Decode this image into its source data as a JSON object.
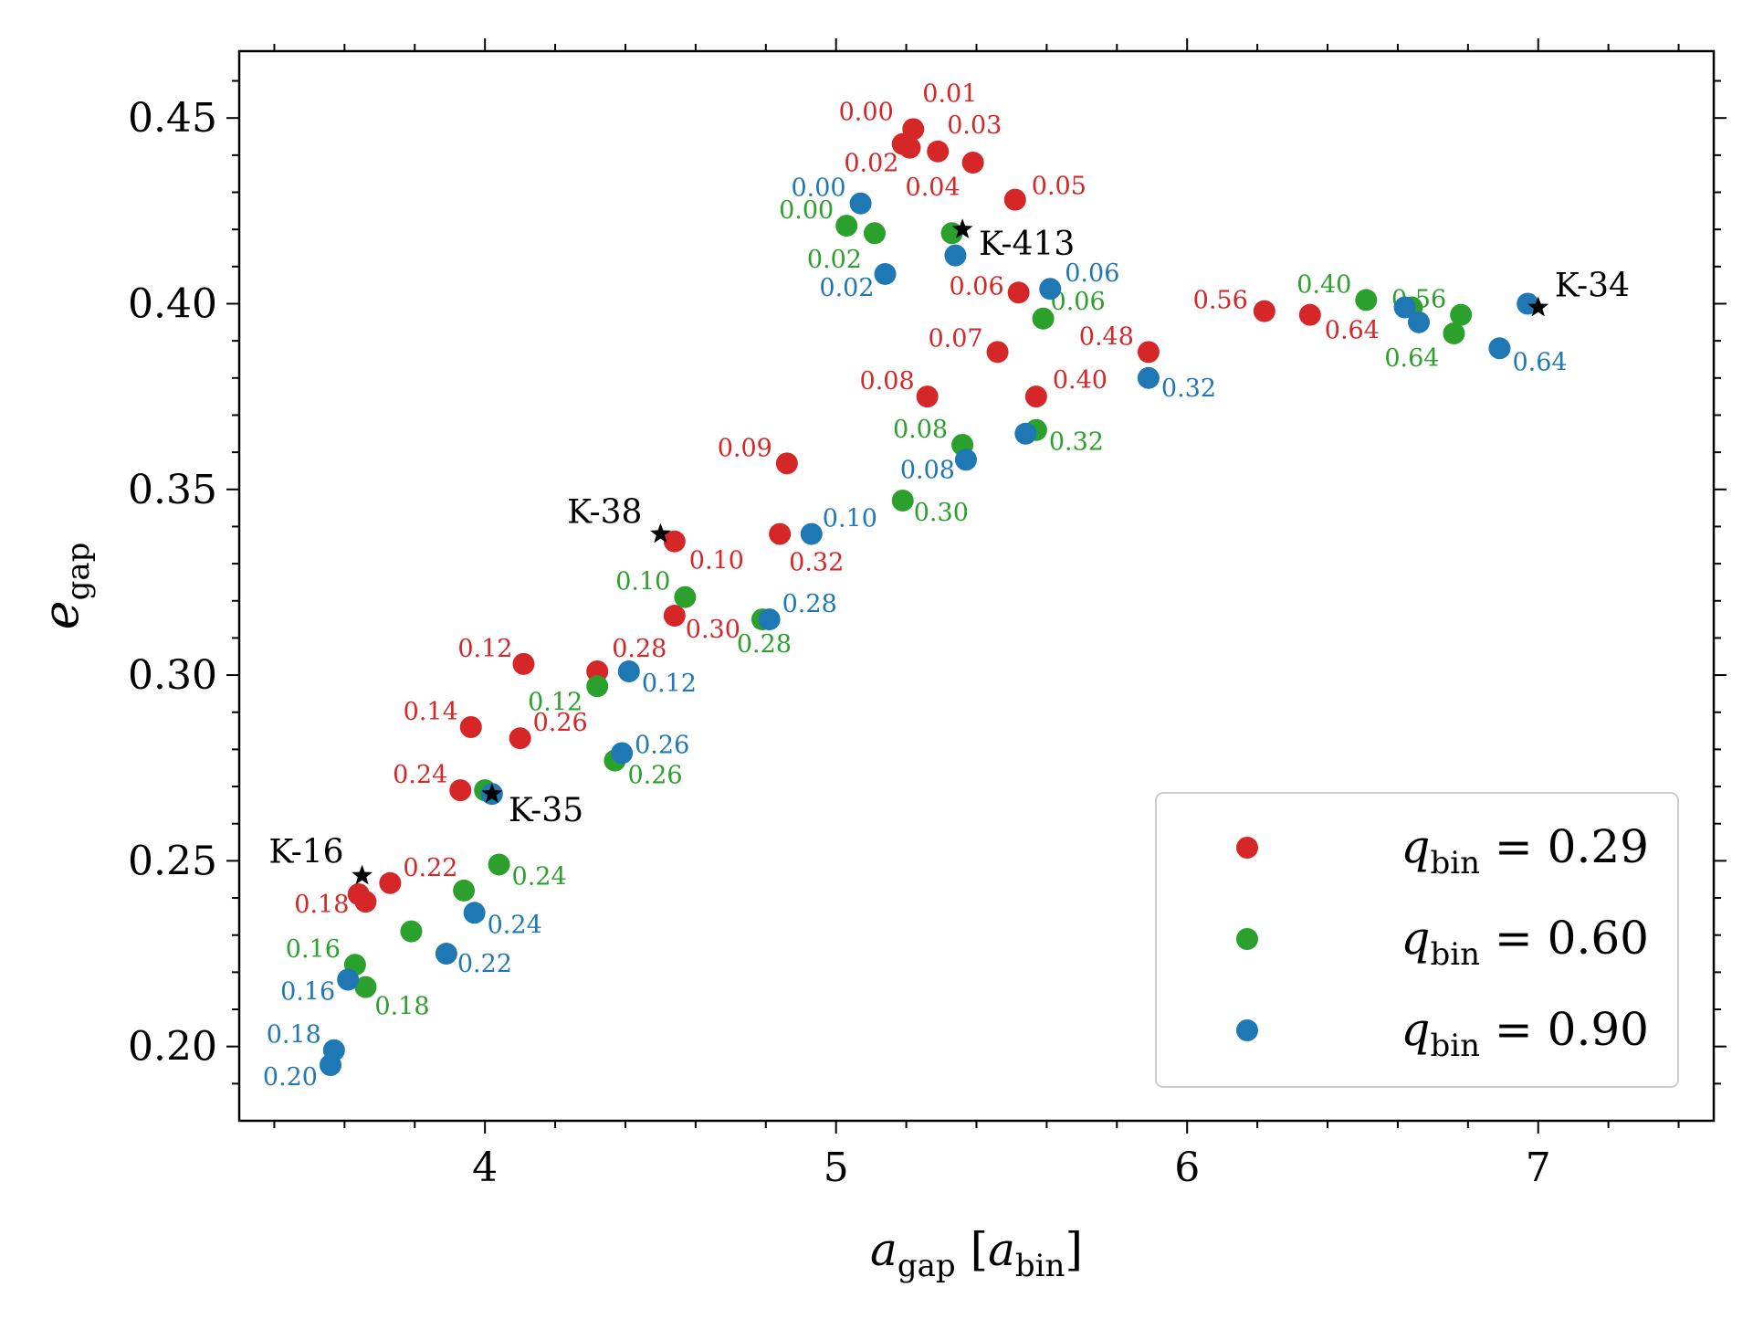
{
  "chart_data": {
    "type": "scatter",
    "xlabel": "a_gap [a_bin]",
    "ylabel": "e_gap",
    "xlim": [
      3.3,
      7.5
    ],
    "ylim": [
      0.18,
      0.468
    ],
    "xticks": [
      "4",
      "5",
      "6",
      "7"
    ],
    "yticks": [
      "0.20",
      "0.25",
      "0.30",
      "0.35",
      "0.40",
      "0.45"
    ],
    "legend_position": "bottom-right",
    "series": [
      {
        "name": "q_bin = 0.29",
        "legend_value": "0.29",
        "color": "#d62728",
        "points": [
          {
            "x": 5.19,
            "y": 0.443,
            "label": "0.00"
          },
          {
            "x": 5.22,
            "y": 0.447,
            "label": "0.01"
          },
          {
            "x": 5.21,
            "y": 0.442,
            "label": "0.02"
          },
          {
            "x": 5.29,
            "y": 0.441,
            "label": "0.03"
          },
          {
            "x": 5.39,
            "y": 0.438,
            "label": "0.04"
          },
          {
            "x": 5.51,
            "y": 0.428,
            "label": "0.05"
          },
          {
            "x": 5.52,
            "y": 0.403,
            "label": "0.06"
          },
          {
            "x": 5.46,
            "y": 0.387,
            "label": "0.07"
          },
          {
            "x": 5.26,
            "y": 0.375,
            "label": "0.08"
          },
          {
            "x": 4.86,
            "y": 0.357,
            "label": "0.09"
          },
          {
            "x": 4.54,
            "y": 0.336,
            "label": "0.10"
          },
          {
            "x": 4.11,
            "y": 0.303,
            "label": "0.12"
          },
          {
            "x": 3.96,
            "y": 0.286,
            "label": "0.14"
          },
          {
            "x": 3.64,
            "y": 0.241,
            "label": ""
          },
          {
            "x": 3.66,
            "y": 0.239,
            "label": "0.18"
          },
          {
            "x": 3.73,
            "y": 0.244,
            "label": "0.22"
          },
          {
            "x": 3.93,
            "y": 0.269,
            "label": "0.24"
          },
          {
            "x": 4.1,
            "y": 0.283,
            "label": "0.26"
          },
          {
            "x": 4.32,
            "y": 0.301,
            "label": "0.28"
          },
          {
            "x": 4.54,
            "y": 0.316,
            "label": "0.30"
          },
          {
            "x": 4.84,
            "y": 0.338,
            "label": "0.32"
          },
          {
            "x": 5.57,
            "y": 0.375,
            "label": "0.40"
          },
          {
            "x": 5.89,
            "y": 0.387,
            "label": "0.48"
          },
          {
            "x": 6.22,
            "y": 0.398,
            "label": "0.56"
          },
          {
            "x": 6.35,
            "y": 0.397,
            "label": "0.64"
          }
        ]
      },
      {
        "name": "q_bin = 0.60",
        "legend_value": "0.60",
        "color": "#2ca02c",
        "points": [
          {
            "x": 5.03,
            "y": 0.421,
            "label": "0.00"
          },
          {
            "x": 5.11,
            "y": 0.419,
            "label": "0.02"
          },
          {
            "x": 5.33,
            "y": 0.419,
            "label": ""
          },
          {
            "x": 5.59,
            "y": 0.396,
            "label": "0.06"
          },
          {
            "x": 5.36,
            "y": 0.362,
            "label": "0.08"
          },
          {
            "x": 4.57,
            "y": 0.321,
            "label": "0.10"
          },
          {
            "x": 4.32,
            "y": 0.297,
            "label": "0.12"
          },
          {
            "x": 3.63,
            "y": 0.222,
            "label": "0.16"
          },
          {
            "x": 3.66,
            "y": 0.216,
            "label": "0.18"
          },
          {
            "x": 3.79,
            "y": 0.231,
            "label": ""
          },
          {
            "x": 3.94,
            "y": 0.242,
            "label": ""
          },
          {
            "x": 4.04,
            "y": 0.249,
            "label": "0.24"
          },
          {
            "x": 4.0,
            "y": 0.269,
            "label": ""
          },
          {
            "x": 4.37,
            "y": 0.277,
            "label": "0.26"
          },
          {
            "x": 4.79,
            "y": 0.315,
            "label": "0.28"
          },
          {
            "x": 5.19,
            "y": 0.347,
            "label": "0.30"
          },
          {
            "x": 5.57,
            "y": 0.366,
            "label": "0.32"
          },
          {
            "x": 6.51,
            "y": 0.401,
            "label": "0.40"
          },
          {
            "x": 6.64,
            "y": 0.399,
            "label": ""
          },
          {
            "x": 6.78,
            "y": 0.397,
            "label": "0.56"
          },
          {
            "x": 6.76,
            "y": 0.392,
            "label": "0.64"
          }
        ]
      },
      {
        "name": "q_bin = 0.90",
        "legend_value": "0.90",
        "color": "#1f77b4",
        "points": [
          {
            "x": 5.07,
            "y": 0.427,
            "label": "0.00"
          },
          {
            "x": 5.14,
            "y": 0.408,
            "label": "0.02"
          },
          {
            "x": 5.34,
            "y": 0.413,
            "label": ""
          },
          {
            "x": 5.61,
            "y": 0.404,
            "label": "0.06"
          },
          {
            "x": 5.37,
            "y": 0.358,
            "label": "0.08"
          },
          {
            "x": 5.54,
            "y": 0.365,
            "label": ""
          },
          {
            "x": 4.93,
            "y": 0.338,
            "label": "0.10"
          },
          {
            "x": 4.41,
            "y": 0.301,
            "label": "0.12"
          },
          {
            "x": 3.61,
            "y": 0.218,
            "label": "0.16"
          },
          {
            "x": 3.57,
            "y": 0.199,
            "label": "0.18"
          },
          {
            "x": 3.56,
            "y": 0.195,
            "label": "0.20"
          },
          {
            "x": 3.89,
            "y": 0.225,
            "label": "0.22"
          },
          {
            "x": 3.97,
            "y": 0.236,
            "label": "0.24"
          },
          {
            "x": 4.02,
            "y": 0.268,
            "label": ""
          },
          {
            "x": 4.39,
            "y": 0.279,
            "label": "0.26"
          },
          {
            "x": 4.81,
            "y": 0.315,
            "label": "0.28"
          },
          {
            "x": 5.89,
            "y": 0.38,
            "label": "0.32"
          },
          {
            "x": 6.62,
            "y": 0.399,
            "label": ""
          },
          {
            "x": 6.66,
            "y": 0.395,
            "label": ""
          },
          {
            "x": 6.89,
            "y": 0.388,
            "label": "0.64"
          },
          {
            "x": 6.97,
            "y": 0.4,
            "label": ""
          }
        ]
      }
    ],
    "markers": [
      {
        "x": 3.65,
        "y": 0.246,
        "label": "K-16"
      },
      {
        "x": 4.02,
        "y": 0.268,
        "label": "K-35"
      },
      {
        "x": 4.5,
        "y": 0.338,
        "label": "K-38"
      },
      {
        "x": 5.36,
        "y": 0.42,
        "label": "K-413"
      },
      {
        "x": 7.0,
        "y": 0.399,
        "label": "K-34"
      }
    ]
  }
}
